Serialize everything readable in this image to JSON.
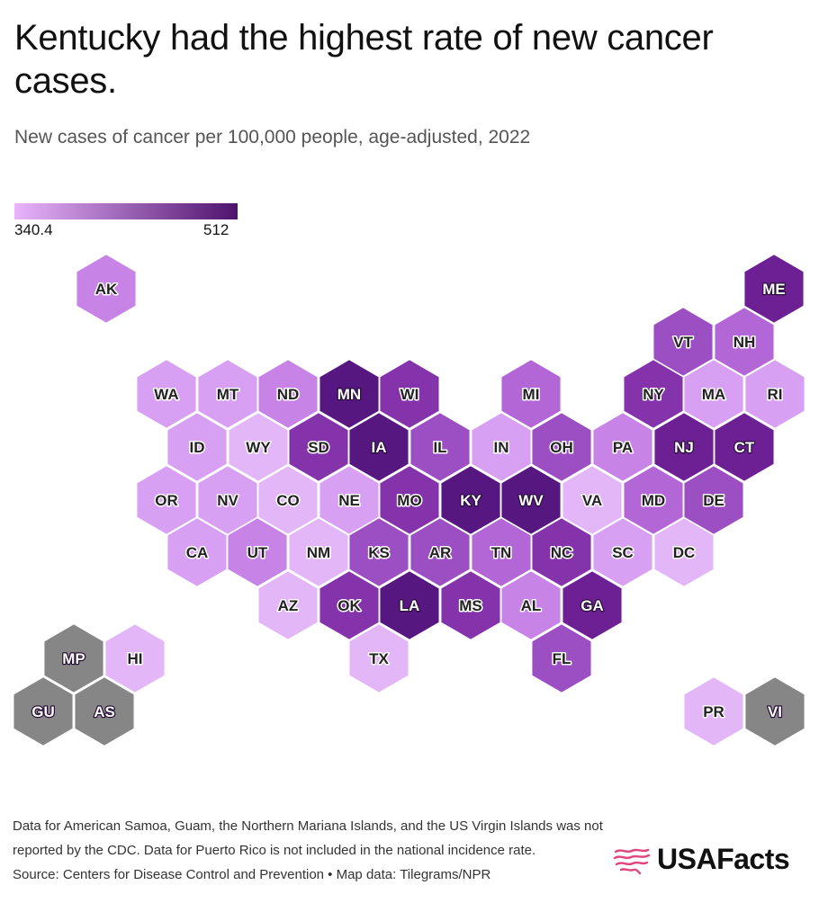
{
  "title": "Kentucky had the highest rate of new cancer cases.",
  "subtitle": "New cases of cancer per 100,000 people, age-adjusted, 2022",
  "legend": {
    "min": "340.4",
    "max": "512",
    "color_low": "#e9b4fb",
    "color_high": "#4e136e"
  },
  "colors": {
    "no_data": "#868686",
    "shades": [
      "#e3b6f8",
      "#d8a0f2",
      "#c883e6",
      "#b366d6",
      "#9c4fc2",
      "#8533ab",
      "#6c2094",
      "#561781"
    ]
  },
  "chart_data": {
    "type": "hex-tile-map",
    "states": [
      {
        "abbr": "AK",
        "shade": 2
      },
      {
        "abbr": "ME",
        "shade": 6
      },
      {
        "abbr": "VT",
        "shade": 4
      },
      {
        "abbr": "NH",
        "shade": 3
      },
      {
        "abbr": "WA",
        "shade": 1
      },
      {
        "abbr": "MT",
        "shade": 1
      },
      {
        "abbr": "ND",
        "shade": 2
      },
      {
        "abbr": "MN",
        "shade": 7
      },
      {
        "abbr": "WI",
        "shade": 5
      },
      {
        "abbr": "MI",
        "shade": 3
      },
      {
        "abbr": "NY",
        "shade": 5
      },
      {
        "abbr": "MA",
        "shade": 1
      },
      {
        "abbr": "RI",
        "shade": 1
      },
      {
        "abbr": "ID",
        "shade": 1
      },
      {
        "abbr": "WY",
        "shade": 0
      },
      {
        "abbr": "SD",
        "shade": 5
      },
      {
        "abbr": "IA",
        "shade": 7
      },
      {
        "abbr": "IL",
        "shade": 4
      },
      {
        "abbr": "IN",
        "shade": 1
      },
      {
        "abbr": "OH",
        "shade": 4
      },
      {
        "abbr": "PA",
        "shade": 2
      },
      {
        "abbr": "NJ",
        "shade": 6
      },
      {
        "abbr": "CT",
        "shade": 6
      },
      {
        "abbr": "OR",
        "shade": 1
      },
      {
        "abbr": "NV",
        "shade": 1
      },
      {
        "abbr": "CO",
        "shade": 0
      },
      {
        "abbr": "NE",
        "shade": 1
      },
      {
        "abbr": "MO",
        "shade": 5
      },
      {
        "abbr": "KY",
        "shade": 7
      },
      {
        "abbr": "WV",
        "shade": 7
      },
      {
        "abbr": "VA",
        "shade": 0
      },
      {
        "abbr": "MD",
        "shade": 3
      },
      {
        "abbr": "DE",
        "shade": 4
      },
      {
        "abbr": "CA",
        "shade": 1
      },
      {
        "abbr": "UT",
        "shade": 2
      },
      {
        "abbr": "NM",
        "shade": 0
      },
      {
        "abbr": "KS",
        "shade": 4
      },
      {
        "abbr": "AR",
        "shade": 4
      },
      {
        "abbr": "TN",
        "shade": 3
      },
      {
        "abbr": "NC",
        "shade": 5
      },
      {
        "abbr": "SC",
        "shade": 1
      },
      {
        "abbr": "DC",
        "shade": 0
      },
      {
        "abbr": "AZ",
        "shade": 0
      },
      {
        "abbr": "OK",
        "shade": 5
      },
      {
        "abbr": "LA",
        "shade": 7
      },
      {
        "abbr": "MS",
        "shade": 5
      },
      {
        "abbr": "AL",
        "shade": 2
      },
      {
        "abbr": "GA",
        "shade": 6
      },
      {
        "abbr": "TX",
        "shade": 0
      },
      {
        "abbr": "FL",
        "shade": 4
      },
      {
        "abbr": "HI",
        "shade": 0
      },
      {
        "abbr": "PR",
        "shade": 0
      },
      {
        "abbr": "MP",
        "shade": null
      },
      {
        "abbr": "GU",
        "shade": null
      },
      {
        "abbr": "AS",
        "shade": null
      },
      {
        "abbr": "VI",
        "shade": null
      }
    ]
  },
  "footnote": {
    "note": "Data for American Samoa, Guam, the Northern Mariana Islands, and the US Virgin Islands was not reported by the CDC. Data for Puerto Rico is not included in the national incidence rate.",
    "source": "Source: Centers for Disease Control and Prevention • Map data: Tilegrams/NPR"
  },
  "logo": {
    "text": "USAFacts",
    "icon": "us-flag-map-icon",
    "icon_color": "#e0457b"
  }
}
